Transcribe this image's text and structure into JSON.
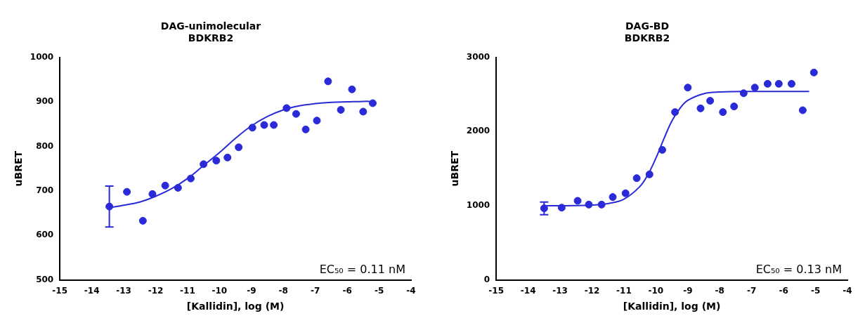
{
  "chart_data": [
    {
      "type": "scatter",
      "title": [
        "DAG-unimolecular",
        "BDKRB2"
      ],
      "x_label": "[Kallidin], log (M)",
      "y_label": "uBRET",
      "annotation": "EC₅₀ = 0.11 nM",
      "xlim": [
        -15,
        -4
      ],
      "xticks": [
        -15,
        -14,
        -13,
        -12,
        -11,
        -10,
        -9,
        -8,
        -7,
        -6,
        -5,
        -4
      ],
      "ylim": [
        500,
        1000
      ],
      "yticks": [
        500,
        600,
        700,
        800,
        900,
        1000
      ],
      "grid": false,
      "series": [
        {
          "type": "scatter",
          "marker": "circle",
          "color": "#2a2ad8",
          "x": [
            -13.45,
            -12.9,
            -12.4,
            -12.1,
            -11.7,
            -11.3,
            -10.9,
            -10.5,
            -10.1,
            -9.75,
            -9.4,
            -8.97,
            -8.6,
            -8.3,
            -7.9,
            -7.6,
            -7.3,
            -6.95,
            -6.6,
            -6.2,
            -5.85,
            -5.5,
            -5.2
          ],
          "values": [
            665,
            698,
            633,
            693,
            712,
            707,
            728,
            760,
            768,
            775,
            798,
            842,
            848,
            848,
            886,
            873,
            838,
            858,
            946,
            882,
            928,
            878,
            897
          ],
          "error": [
            46,
            null,
            null,
            null,
            null,
            null,
            null,
            null,
            null,
            null,
            null,
            null,
            null,
            null,
            null,
            null,
            null,
            null,
            null,
            null,
            null,
            null,
            null
          ]
        },
        {
          "type": "line",
          "line_style": "solid",
          "color": "#2a2ad8",
          "x": [
            -13.5,
            -13,
            -12.5,
            -12,
            -11.5,
            -11,
            -10.5,
            -10,
            -9.5,
            -9,
            -8.5,
            -8,
            -7.5,
            -7,
            -6.5,
            -6,
            -5.5,
            -5.2
          ],
          "values": [
            662,
            668,
            675,
            688,
            705,
            728,
            757,
            786,
            818,
            846,
            867,
            882,
            891,
            896,
            899,
            900,
            901,
            901
          ]
        }
      ]
    },
    {
      "type": "scatter",
      "title": [
        "DAG-BD",
        "BDKRB2"
      ],
      "x_label": "[Kallidin], log (M)",
      "y_label": "uBRET",
      "annotation": "EC₅₀ = 0.13 nM",
      "xlim": [
        -15,
        -4
      ],
      "xticks": [
        -15,
        -14,
        -13,
        -12,
        -11,
        -10,
        -9,
        -8,
        -7,
        -6,
        -5,
        -4
      ],
      "ylim": [
        0,
        3000
      ],
      "yticks": [
        0,
        1000,
        2000,
        3000
      ],
      "grid": false,
      "series": [
        {
          "type": "scatter",
          "marker": "circle",
          "color": "#2a2ad8",
          "x": [
            -13.5,
            -12.95,
            -12.45,
            -12.1,
            -11.7,
            -11.35,
            -10.95,
            -10.6,
            -10.2,
            -9.8,
            -9.4,
            -9.0,
            -8.6,
            -8.3,
            -7.9,
            -7.55,
            -7.25,
            -6.9,
            -6.5,
            -6.15,
            -5.75,
            -5.4,
            -5.05
          ],
          "values": [
            966,
            975,
            1067,
            1016,
            1016,
            1118,
            1169,
            1372,
            1423,
            1753,
            2262,
            2592,
            2312,
            2414,
            2262,
            2338,
            2516,
            2592,
            2643,
            2643,
            2643,
            2287,
            2795
          ],
          "error": [
            85,
            null,
            null,
            null,
            null,
            null,
            null,
            null,
            null,
            null,
            null,
            null,
            null,
            null,
            null,
            null,
            null,
            null,
            null,
            null,
            null,
            null,
            null
          ]
        },
        {
          "type": "line",
          "line_style": "solid",
          "color": "#2a2ad8",
          "x": [
            -13.5,
            -12.5,
            -12,
            -11.5,
            -11,
            -10.5,
            -10.25,
            -10,
            -9.75,
            -9.5,
            -9.25,
            -9,
            -8.5,
            -8,
            -7,
            -5.2
          ],
          "values": [
            1000,
            1003,
            1010,
            1030,
            1090,
            1260,
            1420,
            1640,
            1900,
            2140,
            2310,
            2420,
            2510,
            2532,
            2540,
            2540
          ]
        }
      ]
    }
  ]
}
